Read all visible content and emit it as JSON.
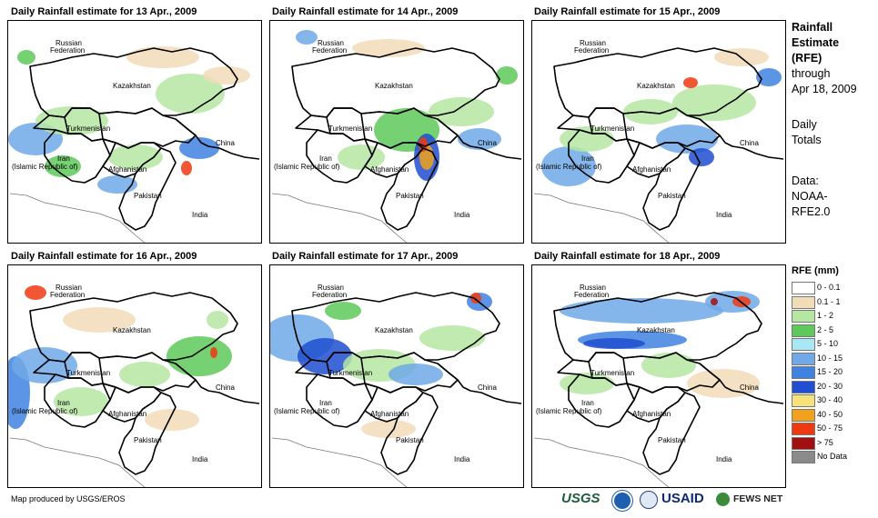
{
  "panels": [
    {
      "title": "Daily Rainfall estimate for 13 Apr., 2009"
    },
    {
      "title": "Daily Rainfall estimate for 14 Apr., 2009"
    },
    {
      "title": "Daily Rainfall estimate for 15 Apr., 2009"
    },
    {
      "title": "Daily Rainfall estimate for 16 Apr., 2009"
    },
    {
      "title": "Daily Rainfall estimate for 17 Apr., 2009"
    },
    {
      "title": "Daily Rainfall estimate for 18 Apr., 2009"
    }
  ],
  "map_labels": {
    "russia1": "Russian",
    "russia2": "Federation",
    "kazakhstan": "Kazakhstan",
    "turkmenistan": "Turkmenistan",
    "iran1": "Iran",
    "iran2": "(Islamic Republic of)",
    "afghanistan": "Afghanistan",
    "pakistan": "Pakistan",
    "china": "China",
    "india": "India"
  },
  "side": {
    "heading1": "Rainfall",
    "heading2": "Estimate",
    "heading3": "(RFE)",
    "through1": "through",
    "through2": "Apr 18, 2009",
    "totals1": "Daily",
    "totals2": "Totals",
    "data1": "Data:",
    "data2": "NOAA-",
    "data3": "RFE2.0"
  },
  "legend": {
    "title": "RFE (mm)",
    "items": [
      {
        "label": "0 - 0.1",
        "color": "#ffffff"
      },
      {
        "label": "0.1 - 1",
        "color": "#f2dcb8"
      },
      {
        "label": "1 - 2",
        "color": "#b5e6a2"
      },
      {
        "label": "2 - 5",
        "color": "#5ec95a"
      },
      {
        "label": "5 - 10",
        "color": "#a8e8f5"
      },
      {
        "label": "10 - 15",
        "color": "#6fa9e8"
      },
      {
        "label": "15 - 20",
        "color": "#3f82e0"
      },
      {
        "label": "20 - 30",
        "color": "#1f4fd0"
      },
      {
        "label": "30 - 40",
        "color": "#f7e27a"
      },
      {
        "label": "40 - 50",
        "color": "#f2a21a"
      },
      {
        "label": "50 - 75",
        "color": "#ee3a10"
      },
      {
        "label": "> 75",
        "color": "#a01010"
      },
      {
        "label": "No Data",
        "color": "#8a8a8a"
      }
    ]
  },
  "footer": "Map produced by USGS/EROS",
  "logos": {
    "usgs": "USGS",
    "usaid": "USAID",
    "fewsnet": "FEWS NET"
  }
}
